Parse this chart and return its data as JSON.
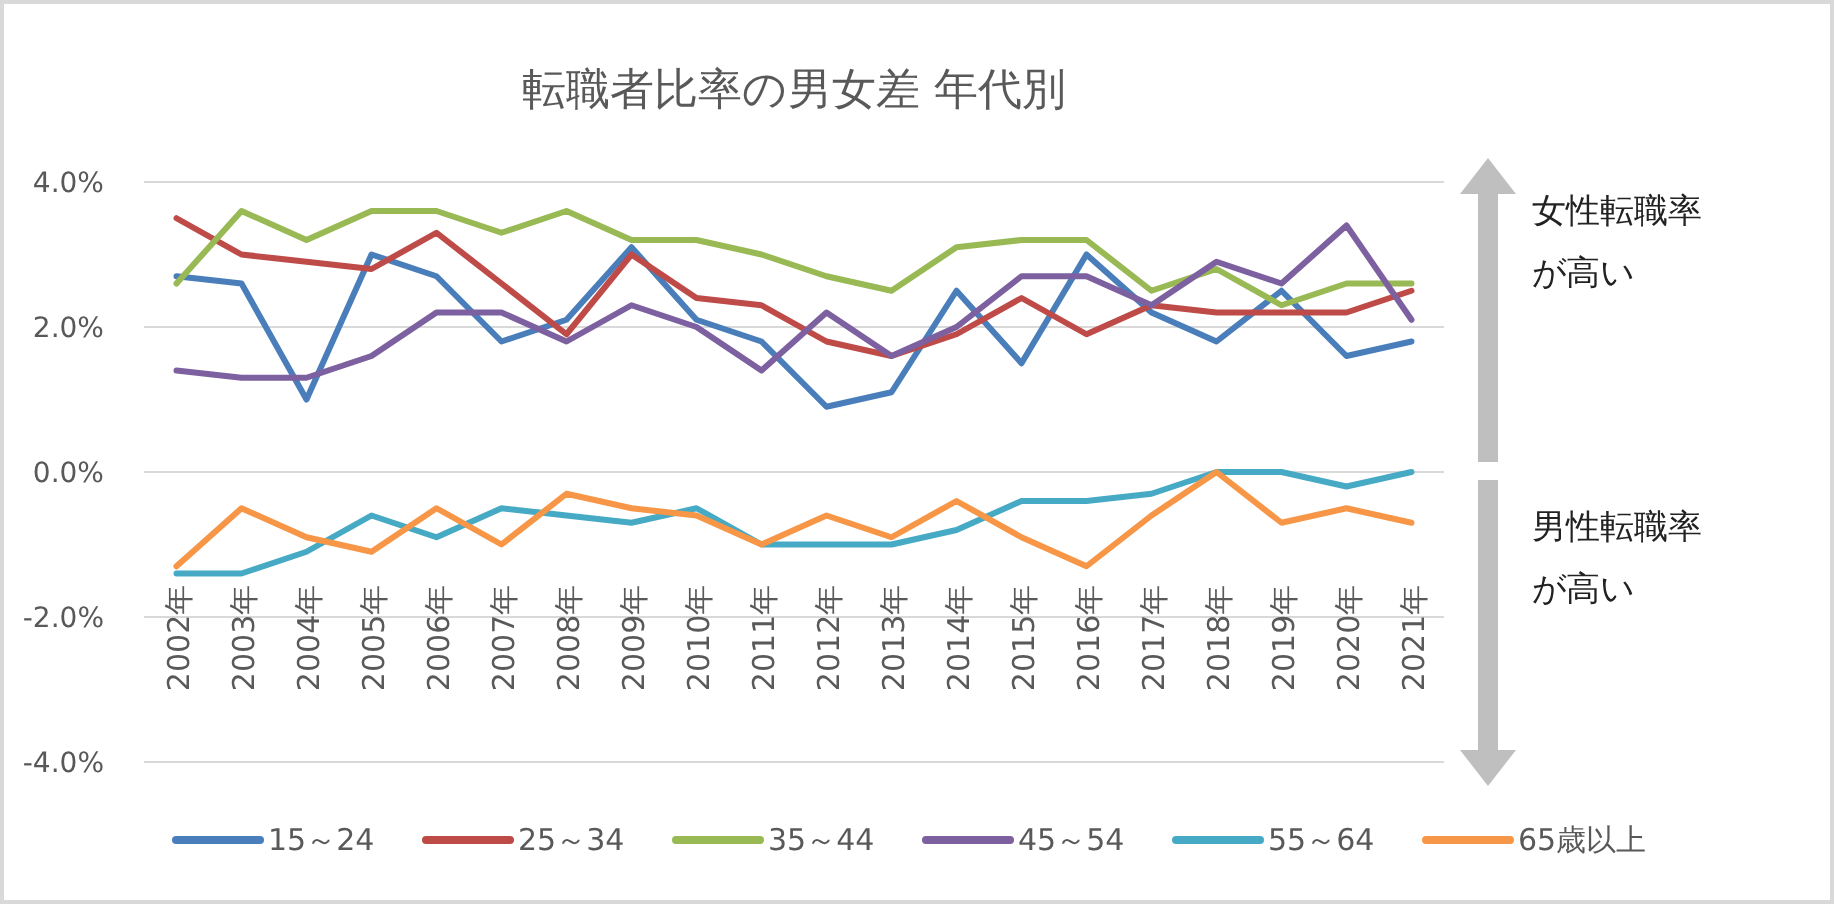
{
  "chart_data": {
    "type": "line",
    "title": "転職者比率の男女差 年代別",
    "categories": [
      "2002年",
      "2003年",
      "2004年",
      "2005年",
      "2006年",
      "2007年",
      "2008年",
      "2009年",
      "2010年",
      "2011年",
      "2012年",
      "2013年",
      "2014年",
      "2015年",
      "2016年",
      "2017年",
      "2018年",
      "2019年",
      "2020年",
      "2021年"
    ],
    "series": [
      {
        "name": "15～24",
        "color": "#4a7ebb",
        "values": [
          2.7,
          2.6,
          1.0,
          3.0,
          2.7,
          1.8,
          2.1,
          3.1,
          2.1,
          1.8,
          0.9,
          1.1,
          2.5,
          1.5,
          3.0,
          2.2,
          1.8,
          2.5,
          1.6,
          1.8
        ]
      },
      {
        "name": "25～34",
        "color": "#be4b48",
        "values": [
          3.5,
          3.0,
          2.9,
          2.8,
          3.3,
          2.6,
          1.9,
          3.0,
          2.4,
          2.3,
          1.8,
          1.6,
          1.9,
          2.4,
          1.9,
          2.3,
          2.2,
          2.2,
          2.2,
          2.5
        ]
      },
      {
        "name": "35～44",
        "color": "#98b954",
        "values": [
          2.6,
          3.6,
          3.2,
          3.6,
          3.6,
          3.3,
          3.6,
          3.2,
          3.2,
          3.0,
          2.7,
          2.5,
          3.1,
          3.2,
          3.2,
          2.5,
          2.8,
          2.3,
          2.6,
          2.6
        ]
      },
      {
        "name": "45～54",
        "color": "#7d60a0",
        "values": [
          1.4,
          1.3,
          1.3,
          1.6,
          2.2,
          2.2,
          1.8,
          2.3,
          2.0,
          1.4,
          2.2,
          1.6,
          2.0,
          2.7,
          2.7,
          2.3,
          2.9,
          2.6,
          3.4,
          2.1
        ]
      },
      {
        "name": "55～64",
        "color": "#46aac5",
        "values": [
          -1.4,
          -1.4,
          -1.1,
          -0.6,
          -0.9,
          -0.5,
          -0.6,
          -0.7,
          -0.5,
          -1.0,
          -1.0,
          -1.0,
          -0.8,
          -0.4,
          -0.4,
          -0.3,
          0.0,
          0.0,
          -0.2,
          0.0
        ]
      },
      {
        "name": "65歳以上",
        "color": "#f79646",
        "values": [
          -1.3,
          -0.5,
          -0.9,
          -1.1,
          -0.5,
          -1.0,
          -0.3,
          -0.5,
          -0.6,
          -1.0,
          -0.6,
          -0.9,
          -0.4,
          -0.9,
          -1.3,
          -0.6,
          0.0,
          -0.7,
          -0.5,
          -0.7
        ]
      }
    ],
    "ylim": [
      -4,
      4
    ],
    "yticks": [
      {
        "value": -4,
        "label": "-4.0%"
      },
      {
        "value": -2,
        "label": "-2.0%"
      },
      {
        "value": 0,
        "label": "0.0%"
      },
      {
        "value": 2,
        "label": "2.0%"
      },
      {
        "value": 4,
        "label": "4.0%"
      }
    ],
    "grid": "y",
    "legend": "bottom",
    "marker": "none",
    "line_style": "solid",
    "annotations": [
      "女性転職率が高い",
      "男性転職率が高い"
    ]
  }
}
